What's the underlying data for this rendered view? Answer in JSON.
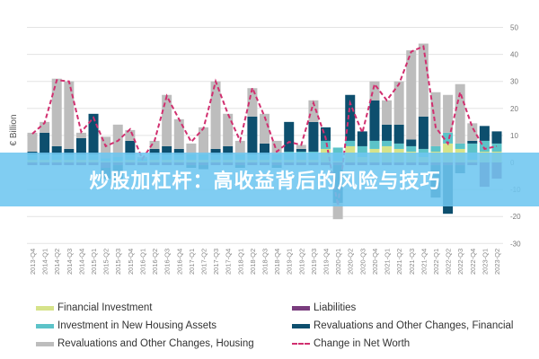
{
  "banner": {
    "text": "炒股加杠杆：高收益背后的风险与技巧"
  },
  "chart_data": {
    "type": "bar",
    "stacked": true,
    "ylabel": "€ Billion",
    "ylim": [
      -30,
      50
    ],
    "yticks": [
      50,
      40,
      30,
      20,
      10,
      0,
      -10,
      -20,
      -30
    ],
    "grid": true,
    "legend_position": "bottom",
    "categories": [
      "2013-Q4",
      "2014-Q1",
      "2014-Q2",
      "2014-Q3",
      "2014-Q4",
      "2015-Q1",
      "2015-Q2",
      "2015-Q3",
      "2015-Q4",
      "2016-Q1",
      "2016-Q2",
      "2016-Q3",
      "2016-Q4",
      "2017-Q1",
      "2017-Q2",
      "2017-Q3",
      "2017-Q4",
      "2018-Q1",
      "2018-Q2",
      "2018-Q3",
      "2018-Q4",
      "2019-Q1",
      "2019-Q2",
      "2019-Q3",
      "2019-Q4",
      "2020-Q1",
      "2020-Q2",
      "2020-Q3",
      "2020-Q4",
      "2021-Q1",
      "2021-Q2",
      "2021-Q3",
      "2021-Q4",
      "2022-Q1",
      "2022-Q2",
      "2022-Q3",
      "2022-Q4",
      "2023-Q1",
      "2023-Q2"
    ],
    "series": [
      {
        "name": "Financial Investment",
        "type": "bar",
        "color": "#d6e38a",
        "values": [
          1,
          1,
          1,
          1,
          1,
          1,
          0.5,
          0.5,
          1,
          0.5,
          1,
          1,
          1,
          1,
          1,
          1,
          1,
          1,
          1,
          1,
          1,
          1,
          1,
          1,
          5,
          0.5,
          6,
          2,
          5,
          6,
          5,
          4,
          2,
          4,
          7,
          5,
          1,
          4,
          4
        ]
      },
      {
        "name": "Investment in New Housing Assets",
        "type": "bar",
        "color": "#5cc3c8",
        "values": [
          2,
          2,
          2,
          2,
          2,
          2,
          1,
          1.5,
          2,
          1,
          2,
          2,
          2,
          2,
          2,
          2,
          2,
          2,
          2,
          2,
          2,
          3,
          3,
          3,
          3,
          5,
          2,
          4,
          3,
          2,
          2,
          2,
          3,
          2,
          4,
          2,
          6,
          4,
          3
        ]
      },
      {
        "name": "Liabilities",
        "type": "bar",
        "color": "#7a3d7e",
        "values": [
          -1,
          -1,
          -1,
          -1,
          -1,
          -1,
          -2,
          -1,
          -1,
          -1,
          -1,
          -1,
          -1,
          -1,
          -1,
          -1,
          -1,
          -1,
          -1,
          -1,
          -1,
          -1,
          -1,
          -1,
          -1,
          -1,
          -1,
          -1,
          -1,
          -1,
          -1,
          -1,
          -1,
          -1,
          -1,
          -1,
          -1,
          -9,
          -6
        ]
      },
      {
        "name": "Revaluations and Other Changes, Financial",
        "type": "bar",
        "color": "#0d4f6e",
        "values": [
          1,
          8,
          3,
          2,
          6,
          15,
          -4,
          -6,
          5,
          0,
          2,
          3,
          2,
          -1,
          -1.5,
          2,
          3,
          -1,
          14,
          4,
          -1,
          11,
          1,
          11,
          5,
          -14,
          17,
          5.5,
          15,
          6,
          7,
          2.5,
          12,
          -12,
          -18,
          -3,
          1,
          5.5,
          4.5
        ]
      },
      {
        "name": "Revaluations and Other Changes, Housing",
        "type": "bar",
        "color": "#bdbdbd",
        "values": [
          7,
          4,
          25,
          25,
          2,
          0,
          8,
          12,
          4,
          0.5,
          3,
          19,
          11,
          4,
          10,
          25,
          12,
          5,
          10.5,
          11,
          5,
          0,
          1.5,
          8,
          0,
          -6,
          0,
          0,
          7,
          9,
          16,
          33,
          27,
          20,
          14,
          22,
          6.5,
          0,
          0
        ]
      },
      {
        "name": "Change in Net Worth",
        "type": "line",
        "style": "dashed",
        "color": "#d12f6f",
        "values": [
          10.6,
          14.6,
          30.5,
          30,
          11.3,
          16.6,
          6,
          8,
          12.3,
          1.3,
          8,
          24.6,
          16,
          7.6,
          12.6,
          30,
          18,
          8,
          27.6,
          17,
          4,
          7.6,
          6.5,
          22,
          9,
          -16,
          22,
          11,
          29,
          23,
          29,
          41,
          43,
          13,
          7,
          26,
          13,
          5,
          6
        ]
      }
    ]
  }
}
